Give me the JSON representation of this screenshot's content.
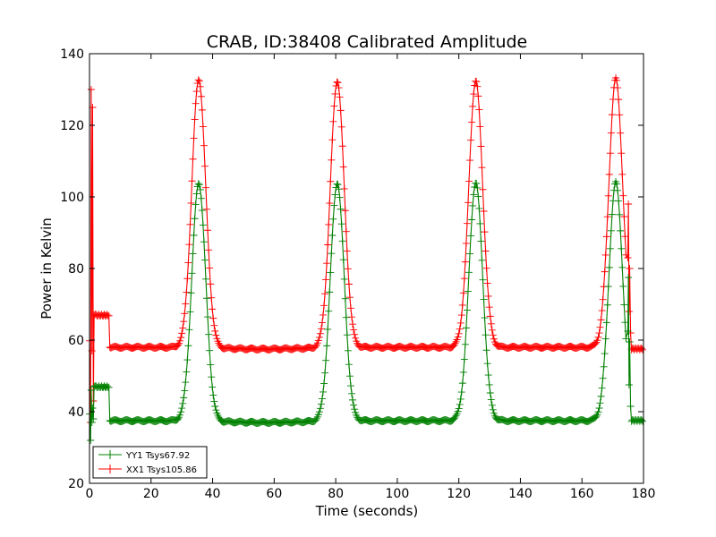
{
  "chart_data": {
    "type": "line",
    "title": "CRAB, ID:38408 Calibrated Amplitude",
    "xlabel": "Time (seconds)",
    "ylabel": "Power in Kelvin",
    "xlim": [
      0,
      180
    ],
    "ylim": [
      20,
      140
    ],
    "x_ticks": [
      0,
      20,
      40,
      60,
      80,
      100,
      120,
      140,
      160,
      180
    ],
    "y_ticks": [
      20,
      40,
      60,
      80,
      100,
      120,
      140
    ],
    "grid": false,
    "legend_position": "lower-left",
    "marker": "+",
    "series": [
      {
        "name": "YY1 Tsys67.92",
        "color": "#008000",
        "baseline": 37.5,
        "startup": {
          "spike_top": 46,
          "spike_bottom": 32,
          "plateau": 47,
          "plateau_end": 6.5
        },
        "peaks": [
          {
            "x": 35.5,
            "y": 104
          },
          {
            "x": 80.5,
            "y": 104
          },
          {
            "x": 125.5,
            "y": 104
          },
          {
            "x": 171.0,
            "y": 104
          }
        ],
        "final_drop": {
          "x": 175.5,
          "y": 37.5
        }
      },
      {
        "name": "XX1 Tsys105.86",
        "color": "#ff0000",
        "baseline": 58,
        "startup": {
          "spike_top": 130,
          "spike_bottom": 37,
          "plateau": 67,
          "plateau_end": 6.5
        },
        "peaks": [
          {
            "x": 35.5,
            "y": 133
          },
          {
            "x": 80.5,
            "y": 132.5
          },
          {
            "x": 125.5,
            "y": 132.5
          },
          {
            "x": 171.0,
            "y": 133
          }
        ],
        "final_drop": {
          "x": 175.5,
          "y": 57.5
        }
      }
    ]
  }
}
